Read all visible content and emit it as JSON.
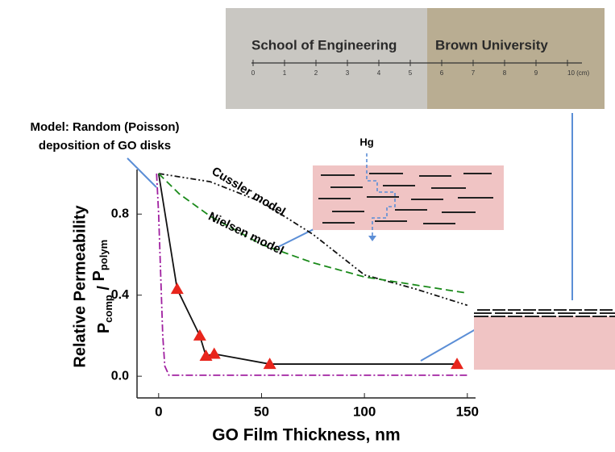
{
  "chart_data": {
    "type": "line",
    "xlabel": "GO Film Thickness, nm",
    "ylabel": "Relative Permeability",
    "ylabel_ratio": {
      "numerator": "P",
      "numerator_sub": "comp",
      "divider": " / ",
      "denominator": "P",
      "denominator_sub": "polym"
    },
    "xlim": [
      -10.5,
      154
    ],
    "ylim": [
      -0.107,
      1.02
    ],
    "xticks": [
      0,
      50,
      100,
      150
    ],
    "yticks": [
      {
        "value": 0,
        "label": "0.0"
      },
      0.4,
      0.8
    ],
    "series": [
      {
        "color": "#111111",
        "dash": "none",
        "marker": "none",
        "x": [
          0,
          9,
          20,
          23,
          27,
          54,
          145
        ],
        "values": [
          1.0,
          0.43,
          0.2,
          0.1,
          0.11,
          0.06,
          0.06
        ]
      },
      {
        "color": "#e8251c",
        "dash": "none",
        "marker": "triangle",
        "x": [
          9,
          20,
          23,
          27,
          54,
          145
        ],
        "values": [
          0.43,
          0.2,
          0.1,
          0.11,
          0.06,
          0.06
        ]
      },
      {
        "color": "#111111",
        "dash": "7,3,2,3,2,3",
        "marker": "none",
        "x": [
          0,
          25,
          50,
          75,
          100,
          125,
          150
        ],
        "values": [
          1.0,
          0.96,
          0.86,
          0.7,
          0.5,
          0.43,
          0.35
        ]
      },
      {
        "color": "#1a8a1a",
        "dash": "9,5",
        "marker": "none",
        "x": [
          0,
          10,
          25,
          50,
          75,
          100,
          125,
          150
        ],
        "values": [
          1.0,
          0.9,
          0.79,
          0.65,
          0.56,
          0.49,
          0.45,
          0.41
        ]
      },
      {
        "color": "#a020a0",
        "dash": "9,3,2,3",
        "marker": "none",
        "x": [
          -1,
          0,
          1,
          2,
          3,
          5,
          150
        ],
        "values": [
          1.0,
          0.8,
          0.5,
          0.2,
          0.05,
          0.005,
          0.005
        ]
      }
    ],
    "annotations": [
      {
        "text": "Cussler model"
      },
      {
        "text": "Nielsen model"
      },
      {
        "text": "Model: Random (Poisson)"
      },
      {
        "text": "deposition of GO disks"
      }
    ]
  },
  "diagram": {
    "label": "Hg"
  },
  "photo": {
    "text_left": "School of Engineering",
    "text_right": "Brown University",
    "ruler_labels": [
      "0",
      "1",
      "2",
      "3",
      "4",
      "5",
      "6",
      "7",
      "8",
      "9",
      "10 (cm)"
    ]
  }
}
